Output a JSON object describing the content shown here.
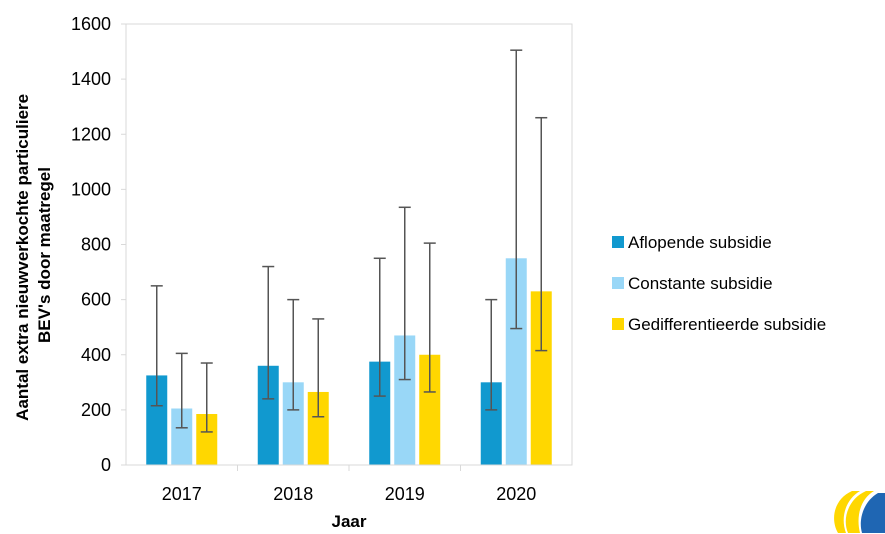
{
  "chart_data": {
    "type": "bar",
    "categories": [
      "2017",
      "2018",
      "2019",
      "2020"
    ],
    "series": [
      {
        "name": "Aflopende subsidie",
        "color": "#1199cf",
        "values": [
          325,
          360,
          375,
          300
        ],
        "error_low": [
          215,
          240,
          250,
          200
        ],
        "error_high": [
          650,
          720,
          750,
          600
        ]
      },
      {
        "name": "Constante subsidie",
        "color": "#99d7f7",
        "values": [
          205,
          300,
          470,
          750
        ],
        "error_low": [
          135,
          200,
          310,
          495
        ],
        "error_high": [
          405,
          600,
          935,
          1505
        ]
      },
      {
        "name": "Gedifferentieerde subsidie",
        "color": "#ffd700",
        "values": [
          185,
          265,
          400,
          630
        ],
        "error_low": [
          120,
          175,
          265,
          415
        ],
        "error_high": [
          370,
          530,
          805,
          1260
        ]
      }
    ],
    "xlabel": "Jaar",
    "ylabel_lines": [
      "Aantal extra nieuwverkochte particuliere",
      "BEV's door maatregel"
    ],
    "ylim": [
      0,
      1600
    ],
    "yticks": [
      0,
      200,
      400,
      600,
      800,
      1000,
      1200,
      1400,
      1600
    ],
    "grid": false,
    "error_bars": true,
    "legend_position": "right"
  },
  "logo": {
    "name": "brand-logo-icon",
    "colors": [
      "#ffd700",
      "#1f66b3"
    ]
  }
}
